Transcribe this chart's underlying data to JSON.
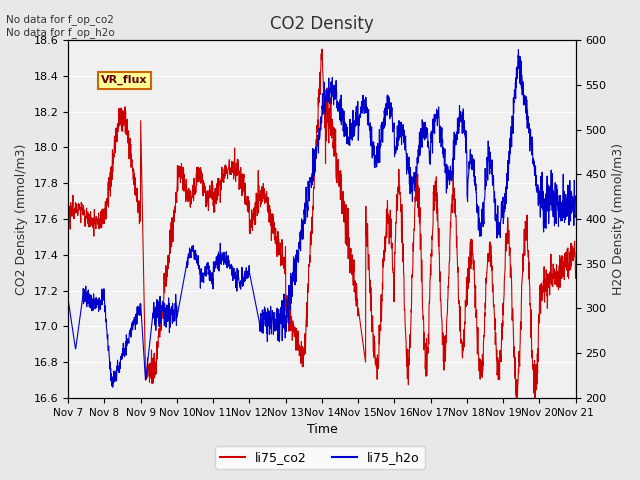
{
  "title": "CO2 Density",
  "xlabel": "Time",
  "ylabel_left": "CO2 Density (mmol/m3)",
  "ylabel_right": "H2O Density (mmol/m3)",
  "annotation_top": "No data for f_op_co2\nNo data for f_op_h2o",
  "legend_label1": "li75_co2",
  "legend_label2": "li75_h2o",
  "legend_box_label": "VR_flux",
  "ylim_left": [
    16.6,
    18.6
  ],
  "ylim_right": [
    200,
    600
  ],
  "yticks_left": [
    16.6,
    16.8,
    17.0,
    17.2,
    17.4,
    17.6,
    17.8,
    18.0,
    18.2,
    18.4,
    18.6
  ],
  "yticks_right": [
    200,
    250,
    300,
    350,
    400,
    450,
    500,
    550,
    600
  ],
  "xtick_labels": [
    "Nov 7",
    "Nov 8",
    "Nov 9",
    "Nov 10",
    "Nov 11",
    "Nov 12",
    "Nov 13",
    "Nov 14",
    "Nov 15",
    "Nov 16",
    "Nov 17",
    "Nov 18",
    "Nov 19",
    "Nov 20",
    "Nov 21"
  ],
  "color_co2": "#cc0000",
  "color_h2o": "#0000cc",
  "bg_color": "#e8e8e8",
  "plot_bg": "#f0f0f0",
  "legend_box_bg": "#ffff99",
  "legend_box_edge": "#cc6600",
  "legend_box_text": "#660000"
}
